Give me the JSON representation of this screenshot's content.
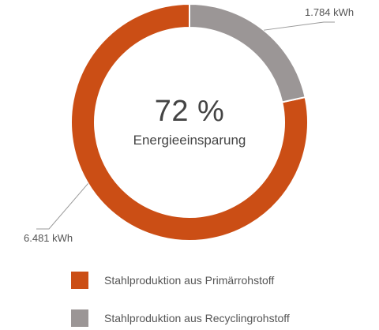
{
  "chart_data": {
    "type": "pie",
    "variant": "donut",
    "center": {
      "value": "72 %",
      "label": "Energieeinsparung"
    },
    "series": [
      {
        "name": "Stahlproduktion aus Primärrohstoff",
        "value": 6481,
        "display": "6.481 kWh",
        "color": "#cb4e15"
      },
      {
        "name": "Stahlproduktion aus Recyclingrohstoff",
        "value": 1784,
        "display": "1.784 kWh",
        "color": "#9b9696"
      }
    ],
    "legend_position": "bottom-left"
  }
}
